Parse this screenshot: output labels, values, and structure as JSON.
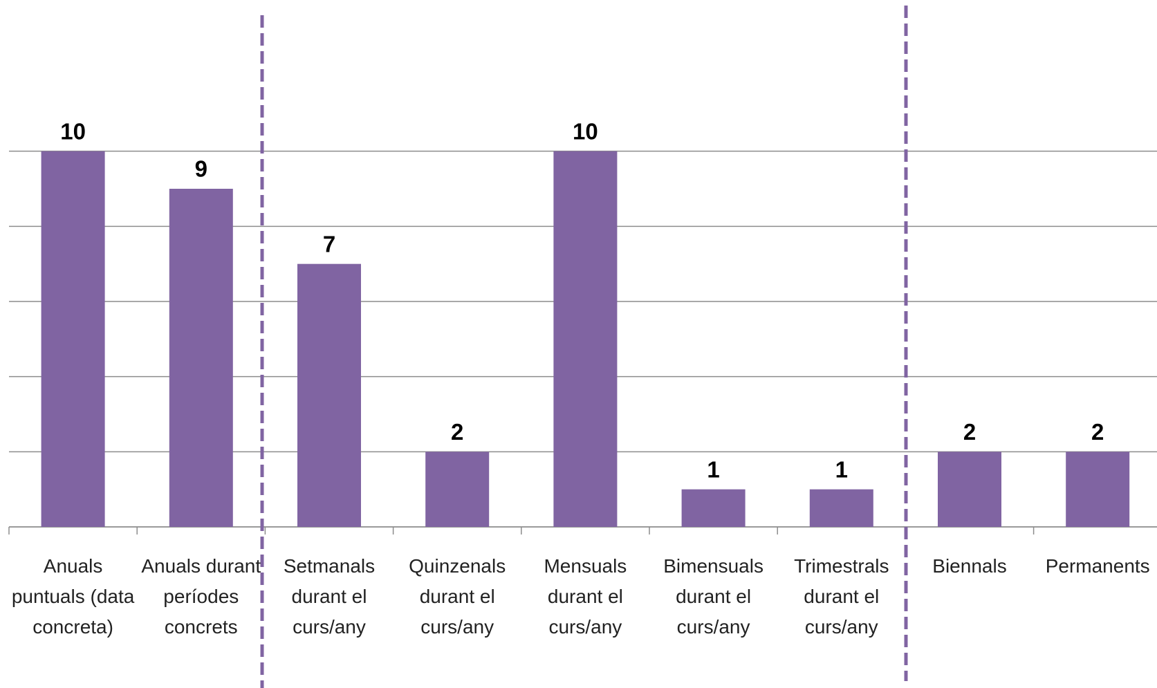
{
  "chart_data": {
    "type": "bar",
    "categories": [
      "Anuals puntuals (data concreta)",
      "Anuals durant períodes concrets",
      "Setmanals durant el curs/any",
      "Quinzenals durant el curs/any",
      "Mensuals durant el curs/any",
      "Bimensuals durant el curs/any",
      "Trimestrals durant el curs/any",
      "Biennals",
      "Permanents"
    ],
    "values": [
      10,
      9,
      7,
      2,
      10,
      1,
      1,
      2,
      2
    ],
    "color": "#8064a2",
    "ylim": [
      0,
      12
    ],
    "yticks": [
      0,
      2,
      4,
      6,
      8,
      10
    ],
    "grid": true
  }
}
